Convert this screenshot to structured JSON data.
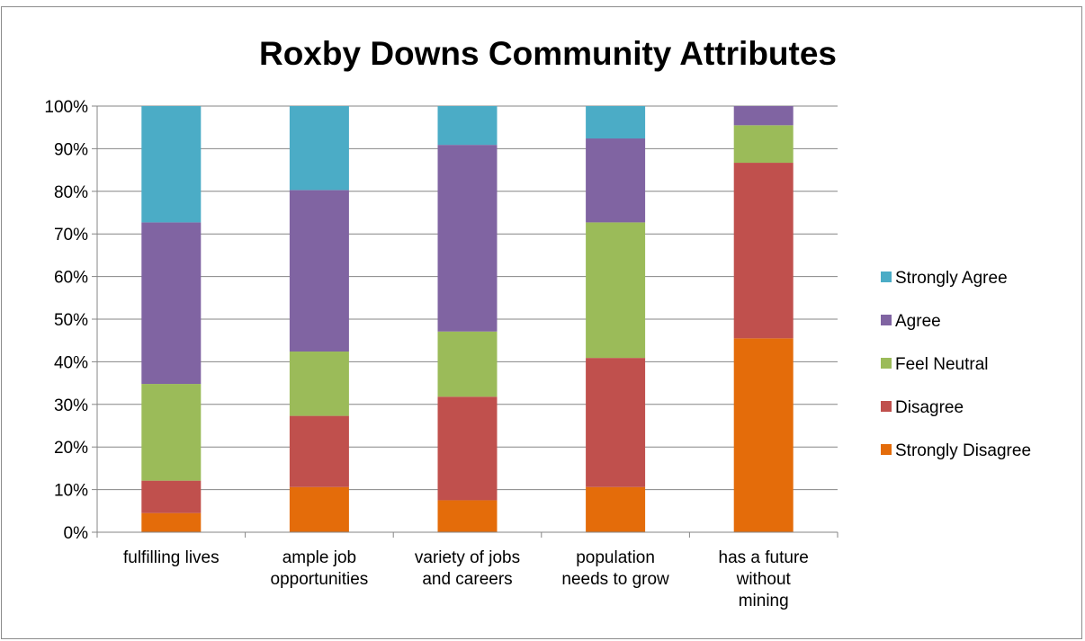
{
  "chart_data": {
    "type": "bar",
    "stacked": "percent",
    "title": "Roxby Downs Community Attributes",
    "xlabel": "",
    "ylabel": "",
    "ylim": [
      0,
      100
    ],
    "y_ticks": [
      "0%",
      "10%",
      "20%",
      "30%",
      "40%",
      "50%",
      "60%",
      "70%",
      "80%",
      "90%",
      "100%"
    ],
    "grid": true,
    "legend_position": "right",
    "categories": [
      [
        "fulfilling lives"
      ],
      [
        "ample job",
        "opportunities"
      ],
      [
        "variety of jobs",
        "and careers"
      ],
      [
        "population",
        "needs to grow"
      ],
      [
        "has a future",
        "without",
        "mining"
      ]
    ],
    "series": [
      {
        "name": "Strongly Disagree",
        "color": "#E46C0A",
        "values": [
          4.5,
          10.6,
          7.5,
          10.6,
          45.5
        ]
      },
      {
        "name": "Disagree",
        "color": "#C0504D",
        "values": [
          7.6,
          16.7,
          24.3,
          30.3,
          41.2
        ]
      },
      {
        "name": "Feel Neutral",
        "color": "#9BBB59",
        "values": [
          22.7,
          15.1,
          15.3,
          31.8,
          8.8
        ]
      },
      {
        "name": "Agree",
        "color": "#8064A2",
        "values": [
          37.9,
          37.9,
          43.8,
          19.7,
          4.5
        ]
      },
      {
        "name": "Strongly Agree",
        "color": "#4BACC6",
        "values": [
          27.3,
          19.7,
          9.1,
          7.6,
          0
        ]
      }
    ],
    "legend_order": [
      "Strongly Agree",
      "Agree",
      "Feel Neutral",
      "Disagree",
      "Strongly Disagree"
    ]
  }
}
